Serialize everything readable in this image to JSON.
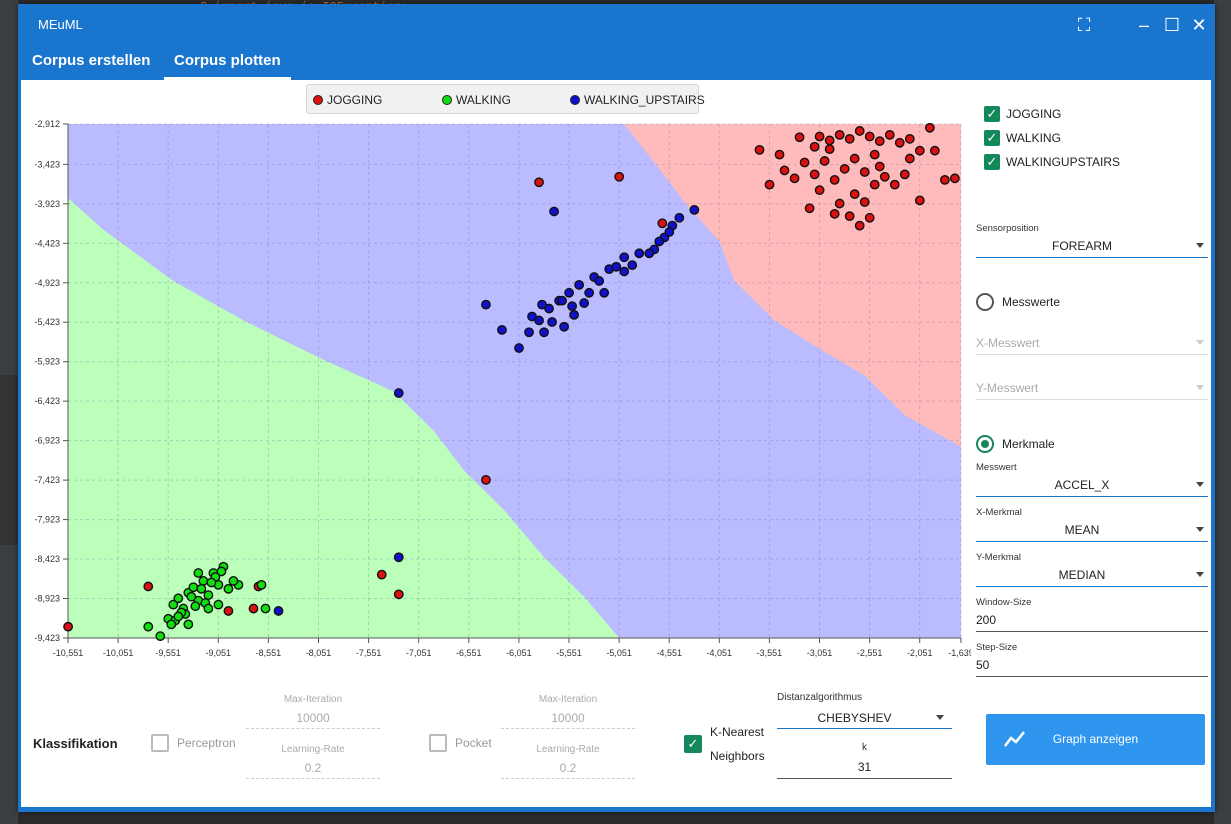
{
  "ide": {
    "code_line": "3    import java.io.IOException;"
  },
  "window": {
    "title": "MEuML"
  },
  "tabs": [
    {
      "label": "Corpus erstellen"
    },
    {
      "label": "Corpus plotten"
    }
  ],
  "legend": [
    {
      "label": "JOGGING",
      "color": "#dd1111"
    },
    {
      "label": "WALKING",
      "color": "#11dd11"
    },
    {
      "label": "WALKING_UPSTAIRS",
      "color": "#1111cc"
    }
  ],
  "chart_data": {
    "type": "scatter",
    "xlim": [
      -10.551,
      -1.639
    ],
    "ylim": [
      -9.423,
      -2.912
    ],
    "x_ticks": [
      "-10,551",
      "-10,051",
      "-9,551",
      "-9,051",
      "-8,551",
      "-8,051",
      "-7,551",
      "-7,051",
      "-6,551",
      "-6,051",
      "-5,551",
      "-5,051",
      "-4,551",
      "-4,051",
      "-3,551",
      "-3,051",
      "-2,551",
      "-2,051",
      "-1,639"
    ],
    "y_ticks": [
      "-2,912",
      "-3,423",
      "-3,923",
      "-4,423",
      "-4,923",
      "-5,423",
      "-5,923",
      "-6,423",
      "-6,923",
      "-7,423",
      "-7,923",
      "-8,423",
      "-8,923",
      "-9,423"
    ],
    "regions": {
      "JOGGING": "#ffbbbb",
      "WALKING": "#bbffbb",
      "WALKING_UPSTAIRS": "#bbbbff"
    },
    "series": [
      {
        "name": "JOGGING",
        "points": [
          [
            -5.85,
            -3.65
          ],
          [
            -5.05,
            -3.58
          ],
          [
            -4.62,
            -4.17
          ],
          [
            -3.25,
            -3.08
          ],
          [
            -3.05,
            -3.07
          ],
          [
            -2.95,
            -3.12
          ],
          [
            -2.85,
            -3.05
          ],
          [
            -2.75,
            -3.1
          ],
          [
            -2.65,
            -3.0
          ],
          [
            -2.55,
            -3.07
          ],
          [
            -2.45,
            -3.13
          ],
          [
            -2.35,
            -3.05
          ],
          [
            -2.25,
            -3.15
          ],
          [
            -2.15,
            -3.1
          ],
          [
            -2.05,
            -3.25
          ],
          [
            -1.95,
            -2.96
          ],
          [
            -3.65,
            -3.24
          ],
          [
            -3.45,
            -3.3
          ],
          [
            -3.2,
            -3.4
          ],
          [
            -3.1,
            -3.55
          ],
          [
            -3.0,
            -3.38
          ],
          [
            -2.9,
            -3.62
          ],
          [
            -2.8,
            -3.48
          ],
          [
            -2.7,
            -3.8
          ],
          [
            -2.6,
            -3.52
          ],
          [
            -2.5,
            -3.68
          ],
          [
            -2.4,
            -3.58
          ],
          [
            -3.3,
            -3.6
          ],
          [
            -3.05,
            -3.75
          ],
          [
            -2.85,
            -3.92
          ],
          [
            -2.75,
            -4.08
          ],
          [
            -2.65,
            -4.2
          ],
          [
            -2.55,
            -4.1
          ],
          [
            -2.3,
            -3.68
          ],
          [
            -2.15,
            -3.35
          ],
          [
            -2.05,
            -3.88
          ],
          [
            -1.9,
            -3.25
          ],
          [
            -1.8,
            -3.62
          ],
          [
            -3.55,
            -3.68
          ],
          [
            -3.15,
            -3.98
          ],
          [
            -2.95,
            -3.23
          ],
          [
            -2.7,
            -3.35
          ],
          [
            -2.45,
            -3.45
          ],
          [
            -2.2,
            -3.55
          ],
          [
            -3.4,
            -3.5
          ],
          [
            -2.9,
            -4.05
          ],
          [
            -2.6,
            -3.9
          ],
          [
            -1.7,
            -3.6
          ],
          [
            -2.5,
            -3.3
          ],
          [
            -3.1,
            -3.2
          ],
          [
            -9.75,
            -8.77
          ],
          [
            -8.65,
            -8.77
          ],
          [
            -8.95,
            -9.08
          ],
          [
            -8.7,
            -9.05
          ],
          [
            -7.42,
            -8.62
          ],
          [
            -7.25,
            -8.87
          ],
          [
            -6.38,
            -7.42
          ],
          [
            -10.55,
            -9.28
          ]
        ]
      },
      {
        "name": "WALKING",
        "points": [
          [
            -9.75,
            -9.28
          ],
          [
            -9.63,
            -9.4
          ],
          [
            -9.55,
            -9.18
          ],
          [
            -9.5,
            -9.0
          ],
          [
            -9.45,
            -8.92
          ],
          [
            -9.4,
            -9.05
          ],
          [
            -9.35,
            -8.85
          ],
          [
            -9.3,
            -8.78
          ],
          [
            -9.25,
            -8.95
          ],
          [
            -9.2,
            -8.7
          ],
          [
            -9.15,
            -8.88
          ],
          [
            -9.1,
            -8.6
          ],
          [
            -9.05,
            -8.75
          ],
          [
            -9.0,
            -8.52
          ],
          [
            -8.95,
            -8.8
          ],
          [
            -9.48,
            -9.2
          ],
          [
            -9.38,
            -9.12
          ],
          [
            -9.28,
            -9.02
          ],
          [
            -9.18,
            -8.98
          ],
          [
            -9.08,
            -8.65
          ],
          [
            -9.02,
            -8.58
          ],
          [
            -9.22,
            -8.8
          ],
          [
            -9.32,
            -8.9
          ],
          [
            -9.42,
            -9.1
          ],
          [
            -9.52,
            -9.25
          ],
          [
            -8.85,
            -8.75
          ],
          [
            -8.62,
            -8.75
          ],
          [
            -8.58,
            -9.05
          ],
          [
            -8.9,
            -8.7
          ],
          [
            -9.12,
            -8.72
          ],
          [
            -9.25,
            -8.6
          ],
          [
            -9.45,
            -9.15
          ],
          [
            -9.35,
            -9.25
          ],
          [
            -9.15,
            -9.05
          ],
          [
            -9.05,
            -9.0
          ]
        ]
      },
      {
        "name": "WALKING_UPSTAIRS",
        "points": [
          [
            -5.7,
            -4.02
          ],
          [
            -4.3,
            -4.0
          ],
          [
            -4.45,
            -4.1
          ],
          [
            -4.52,
            -4.2
          ],
          [
            -4.6,
            -4.35
          ],
          [
            -4.7,
            -4.5
          ],
          [
            -4.85,
            -4.55
          ],
          [
            -5.0,
            -4.6
          ],
          [
            -5.15,
            -4.75
          ],
          [
            -5.3,
            -4.85
          ],
          [
            -5.45,
            -4.95
          ],
          [
            -5.55,
            -5.05
          ],
          [
            -5.65,
            -5.15
          ],
          [
            -5.75,
            -5.25
          ],
          [
            -5.85,
            -5.4
          ],
          [
            -5.95,
            -5.55
          ],
          [
            -6.05,
            -5.75
          ],
          [
            -5.25,
            -4.9
          ],
          [
            -5.2,
            -5.05
          ],
          [
            -5.4,
            -5.18
          ],
          [
            -5.5,
            -5.33
          ],
          [
            -5.6,
            -5.48
          ],
          [
            -5.72,
            -5.42
          ],
          [
            -5.82,
            -5.2
          ],
          [
            -5.92,
            -5.35
          ],
          [
            -5.0,
            -4.78
          ],
          [
            -4.92,
            -4.7
          ],
          [
            -5.08,
            -4.72
          ],
          [
            -4.75,
            -4.55
          ],
          [
            -4.65,
            -4.4
          ],
          [
            -4.55,
            -4.28
          ],
          [
            -5.52,
            -5.22
          ],
          [
            -6.38,
            -5.2
          ],
          [
            -6.22,
            -5.52
          ],
          [
            -7.25,
            -6.32
          ],
          [
            -7.25,
            -8.4
          ],
          [
            -8.45,
            -9.08
          ],
          [
            -5.62,
            -5.15
          ],
          [
            -5.35,
            -5.05
          ],
          [
            -5.8,
            -5.55
          ]
        ]
      }
    ]
  },
  "side": {
    "checks": [
      {
        "label": "JOGGING"
      },
      {
        "label": "WALKING"
      },
      {
        "label": "WALKINGUPSTAIRS"
      }
    ],
    "sensor_label": "Sensorposition",
    "sensor_value": "FOREARM",
    "radio_messwerte": "Messwerte",
    "x_messwert": "X-Messwert",
    "y_messwert": "Y-Messwert",
    "radio_merkmale": "Merkmale",
    "messwert_label": "Messwert",
    "messwert_value": "ACCEL_X",
    "x_merkmal_label": "X-Merkmal",
    "x_merkmal_value": "MEAN",
    "y_merkmal_label": "Y-Merkmal",
    "y_merkmal_value": "MEDIAN",
    "window_label": "Window-Size",
    "window_value": "200",
    "step_label": "Step-Size",
    "step_value": "50"
  },
  "bottom": {
    "klassifikation": "Klassifikation",
    "perceptron": "Perceptron",
    "pocket": "Pocket",
    "max_iter_label": "Max-Iteration",
    "max_iter_value": "10000",
    "lr_label": "Learning-Rate",
    "lr_value": "0.2",
    "knn_line1": "K-Nearest",
    "knn_line2": "Neighbors",
    "dist_label": "Distanzalgorithmus",
    "dist_value": "CHEBYSHEV",
    "k_label": "k",
    "k_value": "31",
    "graph_button": "Graph anzeigen"
  }
}
